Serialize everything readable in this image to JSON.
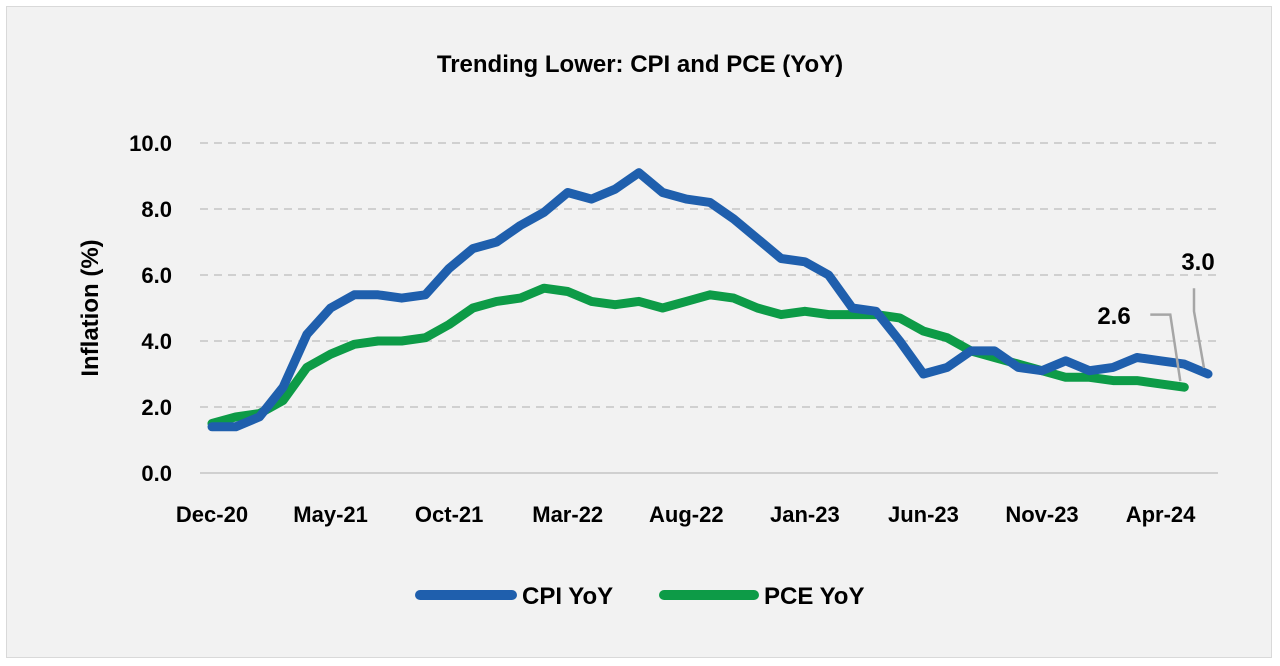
{
  "chart_data": {
    "type": "line",
    "title": "Trending Lower: CPI and PCE (YoY)",
    "ylabel": "Inflation (%)",
    "xlabel": "",
    "ylim": [
      0,
      10
    ],
    "y_ticks": [
      "0.0",
      "2.0",
      "4.0",
      "6.0",
      "8.0",
      "10.0"
    ],
    "x_tick_labels": [
      "Dec-20",
      "May-21",
      "Oct-21",
      "Mar-22",
      "Aug-22",
      "Jan-23",
      "Jun-23",
      "Nov-23",
      "Apr-24"
    ],
    "grid": "horizontal dashed",
    "legend_position": "bottom",
    "x": [
      "Dec-20",
      "Jan-21",
      "Feb-21",
      "Mar-21",
      "Apr-21",
      "May-21",
      "Jun-21",
      "Jul-21",
      "Aug-21",
      "Sep-21",
      "Oct-21",
      "Nov-21",
      "Dec-21",
      "Jan-22",
      "Feb-22",
      "Mar-22",
      "Apr-22",
      "May-22",
      "Jun-22",
      "Jul-22",
      "Aug-22",
      "Sep-22",
      "Oct-22",
      "Nov-22",
      "Dec-22",
      "Jan-23",
      "Feb-23",
      "Mar-23",
      "Apr-23",
      "May-23",
      "Jun-23",
      "Jul-23",
      "Aug-23",
      "Sep-23",
      "Oct-23",
      "Nov-23",
      "Dec-23",
      "Jan-24",
      "Feb-24",
      "Mar-24",
      "Apr-24",
      "May-24"
    ],
    "series": [
      {
        "name": "CPI YoY",
        "color": "#1f5fad",
        "values": [
          1.4,
          1.4,
          1.7,
          2.6,
          4.2,
          5.0,
          5.4,
          5.4,
          5.3,
          5.4,
          6.2,
          6.8,
          7.0,
          7.5,
          7.9,
          8.5,
          8.3,
          8.6,
          9.1,
          8.5,
          8.3,
          8.2,
          7.7,
          7.1,
          6.5,
          6.4,
          6.0,
          5.0,
          4.9,
          4.0,
          3.0,
          3.2,
          3.7,
          3.7,
          3.2,
          3.1,
          3.4,
          3.1,
          3.2,
          3.5,
          3.4,
          3.3
        ]
      },
      {
        "name": "PCE YoY",
        "color": "#0d9b47",
        "values": [
          1.5,
          1.7,
          1.8,
          2.2,
          3.2,
          3.6,
          3.9,
          4.0,
          4.0,
          4.1,
          4.5,
          5.0,
          5.2,
          5.3,
          5.6,
          5.5,
          5.2,
          5.1,
          5.2,
          5.0,
          5.2,
          5.4,
          5.3,
          5.0,
          4.8,
          4.9,
          4.8,
          4.8,
          4.8,
          4.7,
          4.3,
          4.1,
          3.7,
          3.5,
          3.3,
          3.1,
          2.9,
          2.9,
          2.8,
          2.8,
          2.7,
          2.6
        ]
      }
    ],
    "cpi_last": {
      "x": "Jun-24",
      "value": 3.0
    },
    "annotations": [
      "3.0",
      "2.6"
    ]
  }
}
